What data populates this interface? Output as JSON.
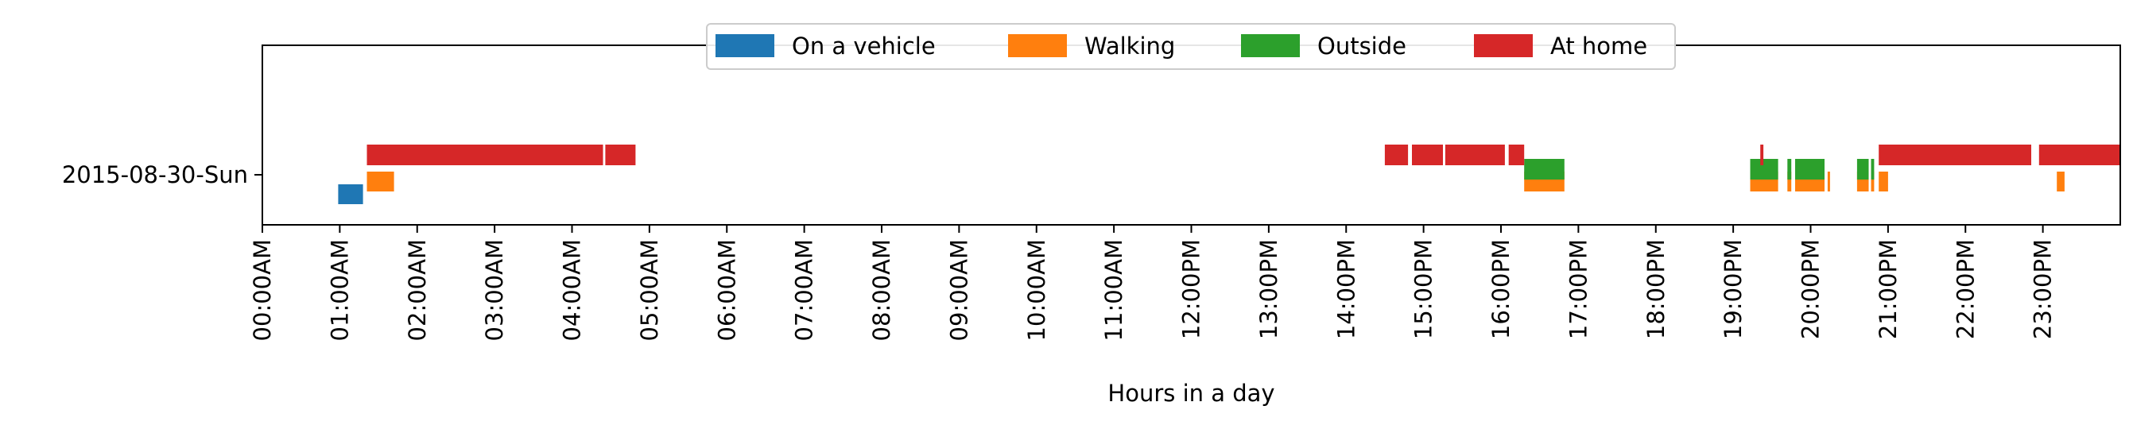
{
  "chart_data": {
    "type": "timeline",
    "xlabel": "Hours in a day",
    "xlim": [
      0,
      24
    ],
    "x_ticks": [
      "00:00AM",
      "01:00AM",
      "02:00AM",
      "03:00AM",
      "04:00AM",
      "05:00AM",
      "06:00AM",
      "07:00AM",
      "08:00AM",
      "09:00AM",
      "10:00AM",
      "11:00AM",
      "12:00PM",
      "13:00PM",
      "14:00PM",
      "15:00PM",
      "16:00PM",
      "17:00PM",
      "18:00PM",
      "19:00PM",
      "20:00PM",
      "21:00PM",
      "22:00PM",
      "23:00PM"
    ],
    "rows": [
      "2015-08-30-Sun"
    ],
    "grid": false,
    "legend_position": "top-center",
    "series": [
      {
        "name": "On a vehicle",
        "color": "#1f77b4",
        "lane": 0,
        "intervals": [
          [
            0.98,
            1.3
          ]
        ]
      },
      {
        "name": "Walking",
        "color": "#ff7f0e",
        "lane": 1,
        "intervals": [
          [
            1.35,
            1.7
          ],
          [
            16.3,
            16.82
          ],
          [
            19.22,
            19.58
          ],
          [
            19.7,
            19.75
          ],
          [
            19.8,
            20.18
          ],
          [
            20.22,
            20.25
          ],
          [
            20.6,
            20.75
          ],
          [
            20.78,
            20.82
          ],
          [
            20.88,
            21.0
          ],
          [
            23.18,
            23.28
          ]
        ]
      },
      {
        "name": "Outside",
        "color": "#2ca02c",
        "lane": 2,
        "intervals": [
          [
            16.3,
            16.82
          ],
          [
            19.22,
            19.58
          ],
          [
            19.7,
            19.75
          ],
          [
            19.8,
            20.18
          ],
          [
            20.6,
            20.75
          ],
          [
            20.78,
            20.82
          ]
        ]
      },
      {
        "name": "At home",
        "color": "#d62728",
        "lane": 3,
        "intervals": [
          [
            1.35,
            4.4
          ],
          [
            4.43,
            4.82
          ],
          [
            14.5,
            14.8
          ],
          [
            14.85,
            15.25
          ],
          [
            15.28,
            16.05
          ],
          [
            16.1,
            16.3
          ],
          [
            19.35,
            19.39
          ],
          [
            20.88,
            22.85
          ],
          [
            22.95,
            24.0
          ]
        ]
      }
    ]
  }
}
